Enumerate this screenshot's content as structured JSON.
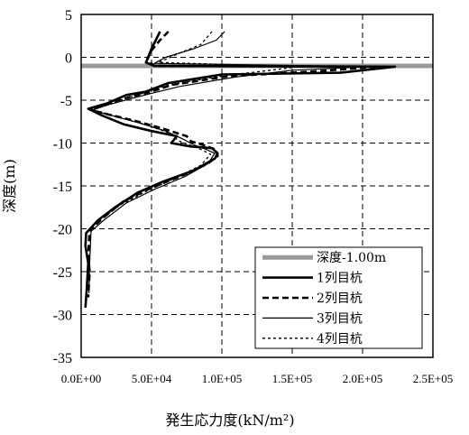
{
  "chart_data": {
    "type": "line",
    "xlabel": "発生応力度(kN/m²)",
    "ylabel": "深度(m)",
    "xlim": [
      0,
      250000
    ],
    "ylim": [
      -35,
      5
    ],
    "x_ticks": [
      "0.0E+00",
      "5.0E+04",
      "1.0E+05",
      "1.5E+05",
      "2.0E+05",
      "2.5E+05"
    ],
    "y_ticks": [
      "5",
      "0",
      "-5",
      "-10",
      "-15",
      "-20",
      "-25",
      "-30",
      "-35"
    ],
    "grid": true,
    "legend_position": "lower-right",
    "series": [
      {
        "name": "深度-1.00m",
        "color": "#999999",
        "style": "thick-solid",
        "points": [
          [
            0,
            -1.0
          ],
          [
            250000,
            -1.0
          ]
        ]
      },
      {
        "name": "1列目杭",
        "color": "#000000",
        "style": "bold-solid",
        "points": [
          [
            56000,
            3
          ],
          [
            50000,
            1
          ],
          [
            46000,
            -0.6
          ],
          [
            52000,
            -1
          ],
          [
            223000,
            -1.1
          ],
          [
            184000,
            -1.8
          ],
          [
            100000,
            -2
          ],
          [
            62000,
            -3
          ],
          [
            46000,
            -4
          ],
          [
            32000,
            -4.4
          ],
          [
            18000,
            -5.4
          ],
          [
            5000,
            -6
          ],
          [
            15000,
            -6.8
          ],
          [
            30000,
            -7.8
          ],
          [
            50000,
            -8.6
          ],
          [
            68000,
            -9.2
          ],
          [
            64000,
            -10
          ],
          [
            78000,
            -10.4
          ],
          [
            93000,
            -10.6
          ],
          [
            97000,
            -11.2
          ],
          [
            95000,
            -11.8
          ],
          [
            80000,
            -13.2
          ],
          [
            58000,
            -14.5
          ],
          [
            40000,
            -15.8
          ],
          [
            24000,
            -17.5
          ],
          [
            12000,
            -19
          ],
          [
            3500,
            -20.5
          ],
          [
            3000,
            -22
          ],
          [
            5000,
            -24
          ],
          [
            4000,
            -27
          ],
          [
            3000,
            -29.2
          ]
        ]
      },
      {
        "name": "2列目杭",
        "color": "#000000",
        "style": "bold-dashed",
        "points": [
          [
            62000,
            3
          ],
          [
            56000,
            2
          ],
          [
            50000,
            0.8
          ],
          [
            47000,
            -0.3
          ],
          [
            52000,
            -1
          ],
          [
            210000,
            -1.1
          ],
          [
            170000,
            -1.6
          ],
          [
            105000,
            -2.2
          ],
          [
            65000,
            -3.2
          ],
          [
            48000,
            -4.1
          ],
          [
            35000,
            -4.6
          ],
          [
            20000,
            -5.3
          ],
          [
            6000,
            -6.1
          ],
          [
            20000,
            -6.7
          ],
          [
            38000,
            -7.4
          ],
          [
            58000,
            -8.3
          ],
          [
            75000,
            -9.2
          ],
          [
            78000,
            -9.8
          ],
          [
            88000,
            -10.3
          ],
          [
            96000,
            -10.8
          ],
          [
            97000,
            -11.5
          ],
          [
            90000,
            -12.4
          ],
          [
            72000,
            -13.8
          ],
          [
            50000,
            -15.2
          ],
          [
            30000,
            -16.8
          ],
          [
            15000,
            -18.8
          ],
          [
            6000,
            -20.2
          ],
          [
            5000,
            -23
          ],
          [
            6000,
            -25
          ],
          [
            5000,
            -28
          ]
        ]
      },
      {
        "name": "3列目杭",
        "color": "#000000",
        "style": "solid",
        "points": [
          [
            102000,
            3
          ],
          [
            96000,
            2
          ],
          [
            80000,
            1
          ],
          [
            60000,
            0
          ],
          [
            52000,
            -0.7
          ],
          [
            205000,
            -1.1
          ],
          [
            150000,
            -1.5
          ],
          [
            110000,
            -2.3
          ],
          [
            70000,
            -3.4
          ],
          [
            50000,
            -4.2
          ],
          [
            36000,
            -4.8
          ],
          [
            20000,
            -5.5
          ],
          [
            7000,
            -6.2
          ],
          [
            22000,
            -6.8
          ],
          [
            40000,
            -7.6
          ],
          [
            60000,
            -8.6
          ],
          [
            72000,
            -9.5
          ],
          [
            80000,
            -10.2
          ],
          [
            88000,
            -10.7
          ],
          [
            95000,
            -11.2
          ],
          [
            90000,
            -12.4
          ],
          [
            74000,
            -13.9
          ],
          [
            52000,
            -15.4
          ],
          [
            32000,
            -17
          ],
          [
            16000,
            -19
          ],
          [
            7000,
            -20.3
          ],
          [
            6000,
            -24
          ],
          [
            5500,
            -27.5
          ]
        ]
      },
      {
        "name": "4列目杭",
        "color": "#000000",
        "style": "dotted",
        "points": [
          [
            93000,
            3
          ],
          [
            85000,
            1.5
          ],
          [
            70000,
            0.5
          ],
          [
            55000,
            -0.6
          ],
          [
            155000,
            -1.1
          ],
          [
            130000,
            -1.6
          ],
          [
            95000,
            -2.3
          ],
          [
            60000,
            -3.3
          ],
          [
            40000,
            -4.4
          ],
          [
            22000,
            -5.3
          ],
          [
            8000,
            -6.1
          ],
          [
            25000,
            -6.9
          ],
          [
            45000,
            -7.8
          ],
          [
            62000,
            -8.8
          ],
          [
            70000,
            -9.8
          ],
          [
            82000,
            -10.5
          ],
          [
            92000,
            -11.3
          ],
          [
            85000,
            -12.6
          ],
          [
            68000,
            -14
          ],
          [
            48000,
            -15.5
          ],
          [
            28000,
            -17.2
          ],
          [
            13000,
            -19
          ],
          [
            5000,
            -20.2
          ]
        ]
      }
    ]
  }
}
